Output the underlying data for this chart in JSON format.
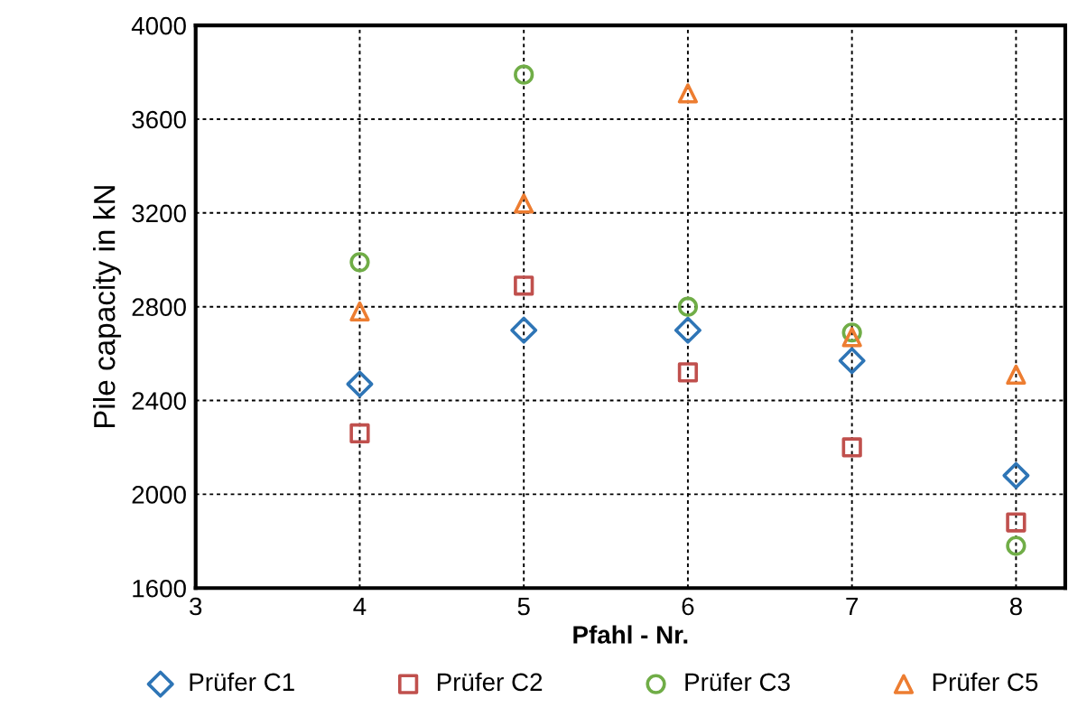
{
  "chart_data": {
    "type": "scatter",
    "xlabel": "Pfahl - Nr.",
    "ylabel": "Pile capacity in kN",
    "x": [
      4,
      5,
      6,
      7,
      8
    ],
    "series": [
      {
        "name": "Prüfer C1",
        "color": "#2e75b6",
        "marker": "diamond",
        "values": [
          2470,
          2700,
          2700,
          2570,
          2080
        ]
      },
      {
        "name": "Prüfer C2",
        "color": "#c0504d",
        "marker": "square",
        "values": [
          2260,
          2890,
          2520,
          2200,
          1880
        ]
      },
      {
        "name": "Prüfer C3",
        "color": "#70ad47",
        "marker": "circle",
        "values": [
          2990,
          3790,
          2800,
          2690,
          1780
        ]
      },
      {
        "name": "Prüfer C5",
        "color": "#ed7d31",
        "marker": "triangle",
        "values": [
          2780,
          3240,
          3710,
          2670,
          2510
        ]
      }
    ],
    "xlim": [
      3,
      8.3
    ],
    "xticks": [
      3,
      4,
      5,
      6,
      7,
      8
    ],
    "ylim": [
      1600,
      4000
    ],
    "yticks": [
      1600,
      2000,
      2400,
      2800,
      3200,
      3600,
      4000
    ],
    "grid": true,
    "legend": "bottom"
  }
}
